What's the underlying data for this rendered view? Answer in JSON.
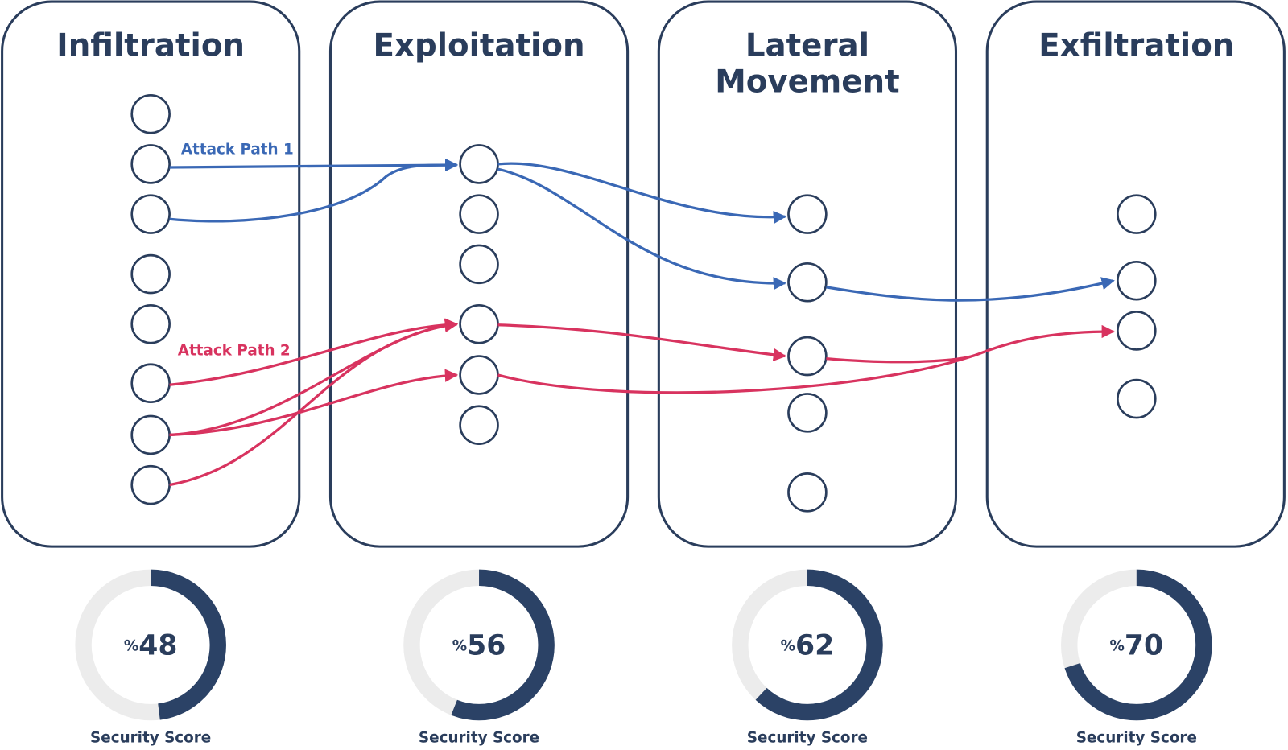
{
  "stages": [
    {
      "title_lines": [
        "Infiltration"
      ],
      "score": 48,
      "score_unit": "%",
      "score_caption": "Security Score"
    },
    {
      "title_lines": [
        "Exploitation"
      ],
      "score": 56,
      "score_unit": "%",
      "score_caption": "Security Score"
    },
    {
      "title_lines": [
        "Lateral",
        "Movement"
      ],
      "score": 62,
      "score_unit": "%",
      "score_caption": "Security Score"
    },
    {
      "title_lines": [
        "Exfiltration"
      ],
      "score": 70,
      "score_unit": "%",
      "score_caption": "Security Score"
    }
  ],
  "attack_paths": [
    {
      "label": "Attack Path 1"
    },
    {
      "label": "Attack Path 2"
    }
  ]
}
